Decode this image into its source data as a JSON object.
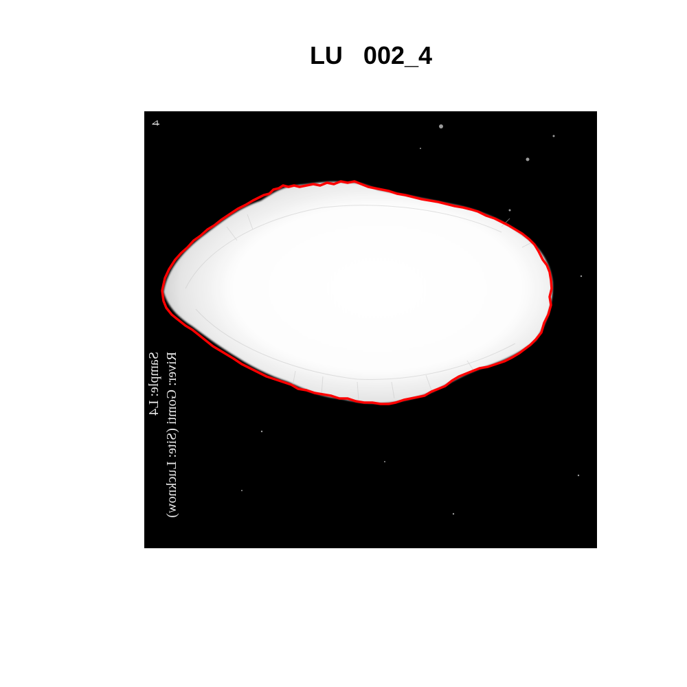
{
  "title": "LU   002_4",
  "image_overlay": {
    "corner_mark": "4",
    "sample_label": "Sample: L4",
    "river_label": "River: Gomti (Site: Lucknow)"
  },
  "colors": {
    "background": "#ffffff",
    "image_background": "#000000",
    "specimen": "#ffffff",
    "outline": "#ff0000",
    "overlay_text": "#e8e8e8"
  }
}
